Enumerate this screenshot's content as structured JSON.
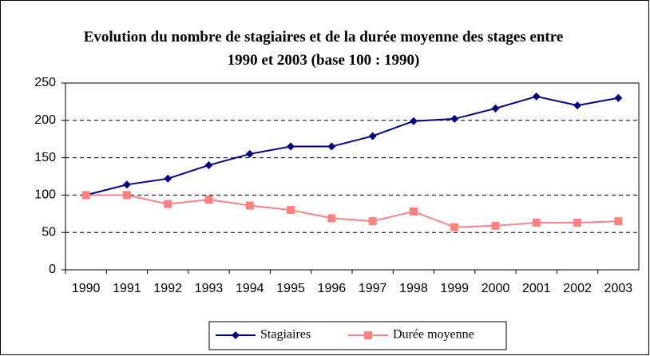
{
  "chart_data": {
    "type": "line",
    "title": "Evolution du nombre de stagiaires et de la durée moyenne des stages entre 1990 et 2003 (base 100 : 1990)",
    "categories": [
      "1990",
      "1991",
      "1992",
      "1993",
      "1994",
      "1995",
      "1996",
      "1997",
      "1998",
      "1999",
      "2000",
      "2001",
      "2002",
      "2003"
    ],
    "series": [
      {
        "name": "Stagiaires",
        "color": "#000080",
        "marker": "diamond",
        "values": [
          100,
          114,
          122,
          140,
          155,
          165,
          165,
          179,
          199,
          202,
          216,
          232,
          220,
          230
        ]
      },
      {
        "name": "Durée moyenne",
        "color": "#ff8080",
        "marker": "square",
        "values": [
          100,
          100,
          88,
          94,
          86,
          80,
          69,
          65,
          78,
          57,
          59,
          63,
          63,
          65
        ]
      }
    ],
    "ylim": [
      0,
      250
    ],
    "yticks": [
      0,
      50,
      100,
      150,
      200,
      250
    ],
    "grid": true,
    "legend": "bottom"
  }
}
